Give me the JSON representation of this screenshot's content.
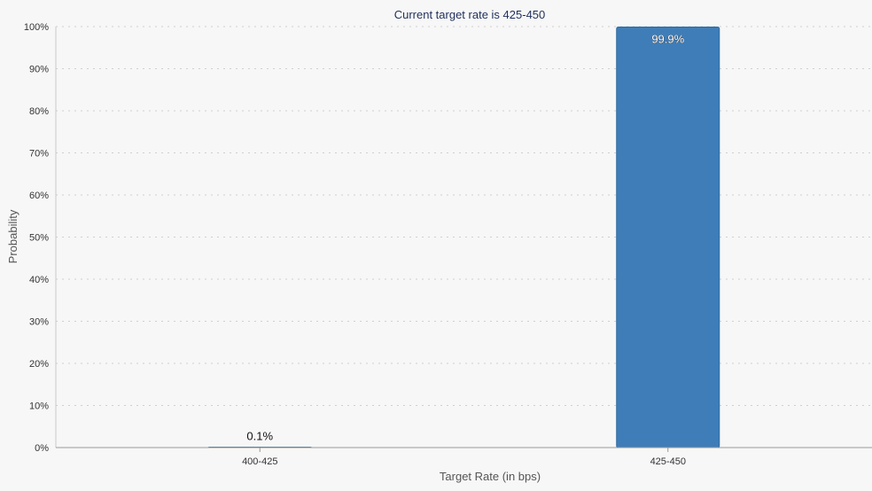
{
  "chart_data": {
    "type": "bar",
    "title": "Current target rate is 425-450",
    "xlabel": "Target Rate (in bps)",
    "ylabel": "Probability",
    "categories": [
      "400-425",
      "425-450"
    ],
    "values": [
      0.1,
      99.9
    ],
    "data_labels": [
      "0.1%",
      "99.9%"
    ],
    "ylim": [
      0,
      100
    ],
    "yticks": [
      "0%",
      "10%",
      "20%",
      "30%",
      "40%",
      "50%",
      "60%",
      "70%",
      "80%",
      "90%",
      "100%"
    ],
    "grid": true,
    "legend": "none",
    "colors": {
      "bar": "#3f7db8",
      "bar_edge": "#2f6aa0",
      "background": "#f7f7f7",
      "grid": "#cfcfcf",
      "title": "#1f2f5c"
    }
  }
}
